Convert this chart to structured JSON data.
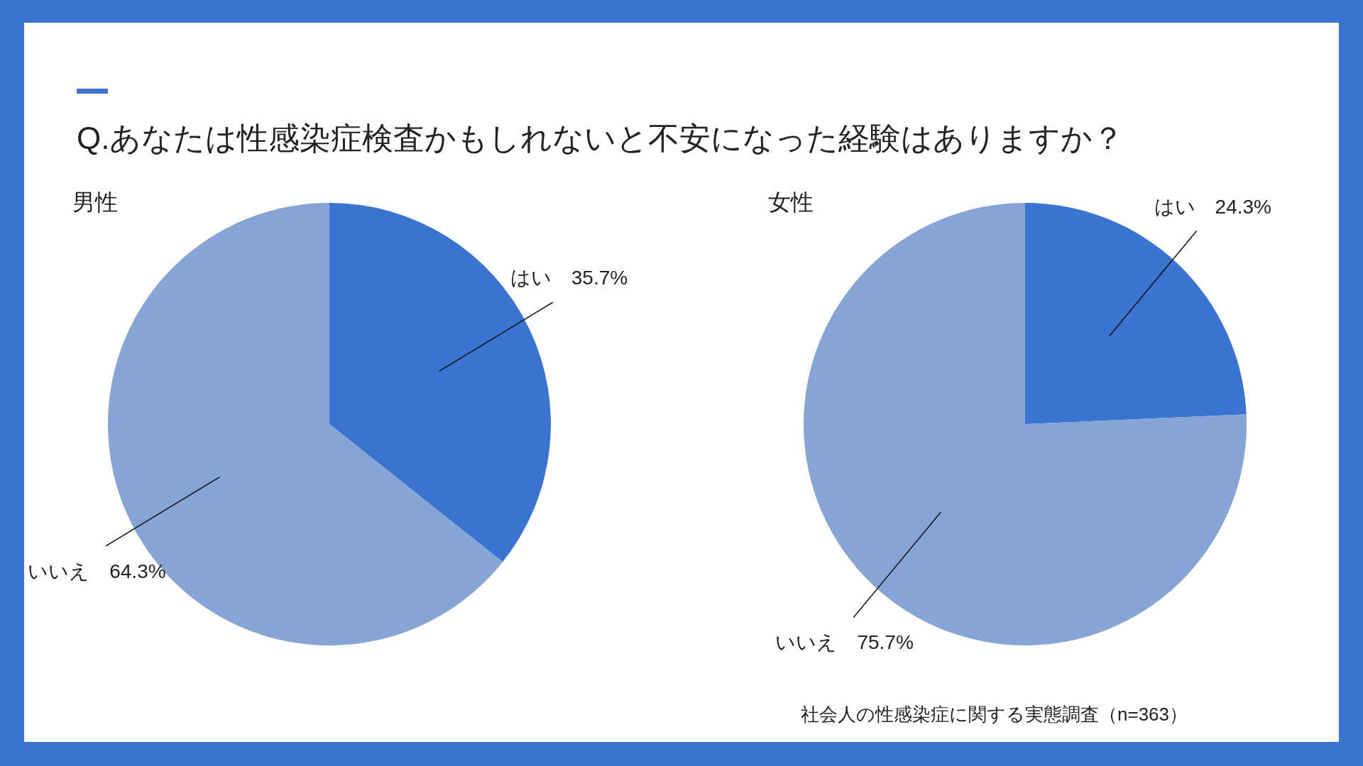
{
  "chart_data": [
    {
      "type": "pie",
      "title": "Q.あなたは性感染症検査かもしれないと不安になった経験はありますか？",
      "subtitle": "男性",
      "categories": [
        "はい",
        "いいえ"
      ],
      "values": [
        35.7,
        64.3
      ],
      "value_labels": [
        "35.7%",
        "64.3%"
      ],
      "colors": [
        "#3b73d0",
        "#86a5d4"
      ]
    },
    {
      "type": "pie",
      "subtitle": "女性",
      "categories": [
        "はい",
        "いいえ"
      ],
      "values": [
        24.3,
        75.7
      ],
      "value_labels": [
        "24.3%",
        "75.7%"
      ],
      "colors": [
        "#3b73d0",
        "#86a5d4"
      ],
      "annotations": [
        "社会人の性感染症に関する実態調査（n=363）"
      ]
    }
  ]
}
